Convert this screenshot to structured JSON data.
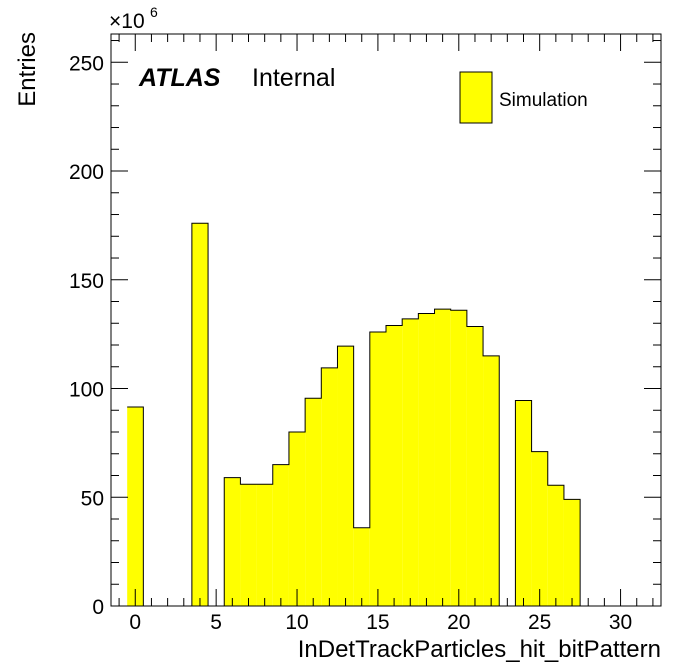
{
  "chart_data": {
    "type": "bar",
    "style": "histogram",
    "fill_color": "#ffff00",
    "edge_color": "#000000",
    "bin_width": 1,
    "bin_centers": [
      0,
      1,
      2,
      3,
      4,
      5,
      6,
      7,
      8,
      9,
      10,
      11,
      12,
      13,
      14,
      15,
      16,
      17,
      18,
      19,
      20,
      21,
      22,
      23,
      24,
      25,
      26,
      27,
      28,
      29,
      30,
      31,
      32
    ],
    "values": [
      91.5,
      0,
      0,
      0,
      176,
      0,
      59,
      56,
      56,
      65,
      80,
      95.5,
      109.5,
      119.5,
      36,
      126,
      129,
      132,
      134.5,
      136.5,
      136,
      128.5,
      115,
      0,
      94.5,
      71,
      55.5,
      49,
      0,
      0,
      0,
      0,
      0
    ],
    "xlabel": "InDetTrackParticles_hit_bitPattern",
    "ylabel": "Entries",
    "x_range": [
      -1.5,
      32.5
    ],
    "ylim": [
      0,
      263
    ],
    "x_ticks": [
      "0",
      "5",
      "10",
      "15",
      "20",
      "25",
      "30"
    ],
    "y_ticks": [
      "0",
      "50",
      "100",
      "150",
      "200",
      "250"
    ],
    "y_multiplier": {
      "base": "×10",
      "exponent": "6"
    },
    "grid": false,
    "label_bold": "ATLAS",
    "label_status": "Internal",
    "legend": {
      "position": "top-right",
      "entries": [
        "Simulation"
      ]
    }
  }
}
